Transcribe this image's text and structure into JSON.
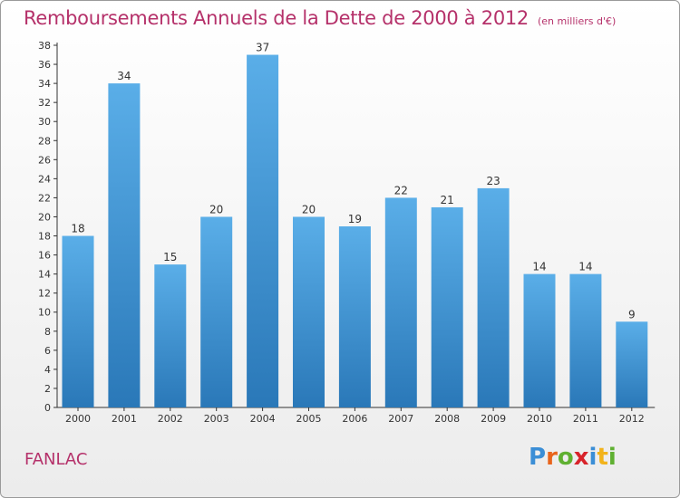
{
  "header": {
    "title": "Remboursements Annuels de la Dette de 2000 à 2012",
    "unit": "(en milliers d'€)"
  },
  "footer": {
    "commune": "FANLAC",
    "brand_letters": [
      "P",
      "r",
      "o",
      "x",
      "i",
      "t",
      "i"
    ]
  },
  "colors": {
    "title": "#b5316a",
    "bar_top": "#5aaee8",
    "bar_bottom": "#2a78b8",
    "brand": [
      "#3b8ed6",
      "#e8641c",
      "#5fb031",
      "#d8232a",
      "#3b8ed6",
      "#f2b31b",
      "#5fb031"
    ]
  },
  "chart_data": {
    "type": "bar",
    "title": "Remboursements Annuels de la Dette de 2000 à 2012",
    "categories": [
      "2000",
      "2001",
      "2002",
      "2003",
      "2004",
      "2005",
      "2006",
      "2007",
      "2008",
      "2009",
      "2010",
      "2011",
      "2012"
    ],
    "values": [
      18,
      34,
      15,
      20,
      37,
      20,
      19,
      22,
      21,
      23,
      14,
      14,
      9
    ],
    "ylim": [
      0,
      38
    ],
    "yticks": [
      0,
      2,
      4,
      6,
      8,
      10,
      12,
      14,
      16,
      18,
      20,
      22,
      24,
      26,
      28,
      30,
      32,
      34,
      36,
      38
    ],
    "grid": false,
    "legend": "none"
  }
}
